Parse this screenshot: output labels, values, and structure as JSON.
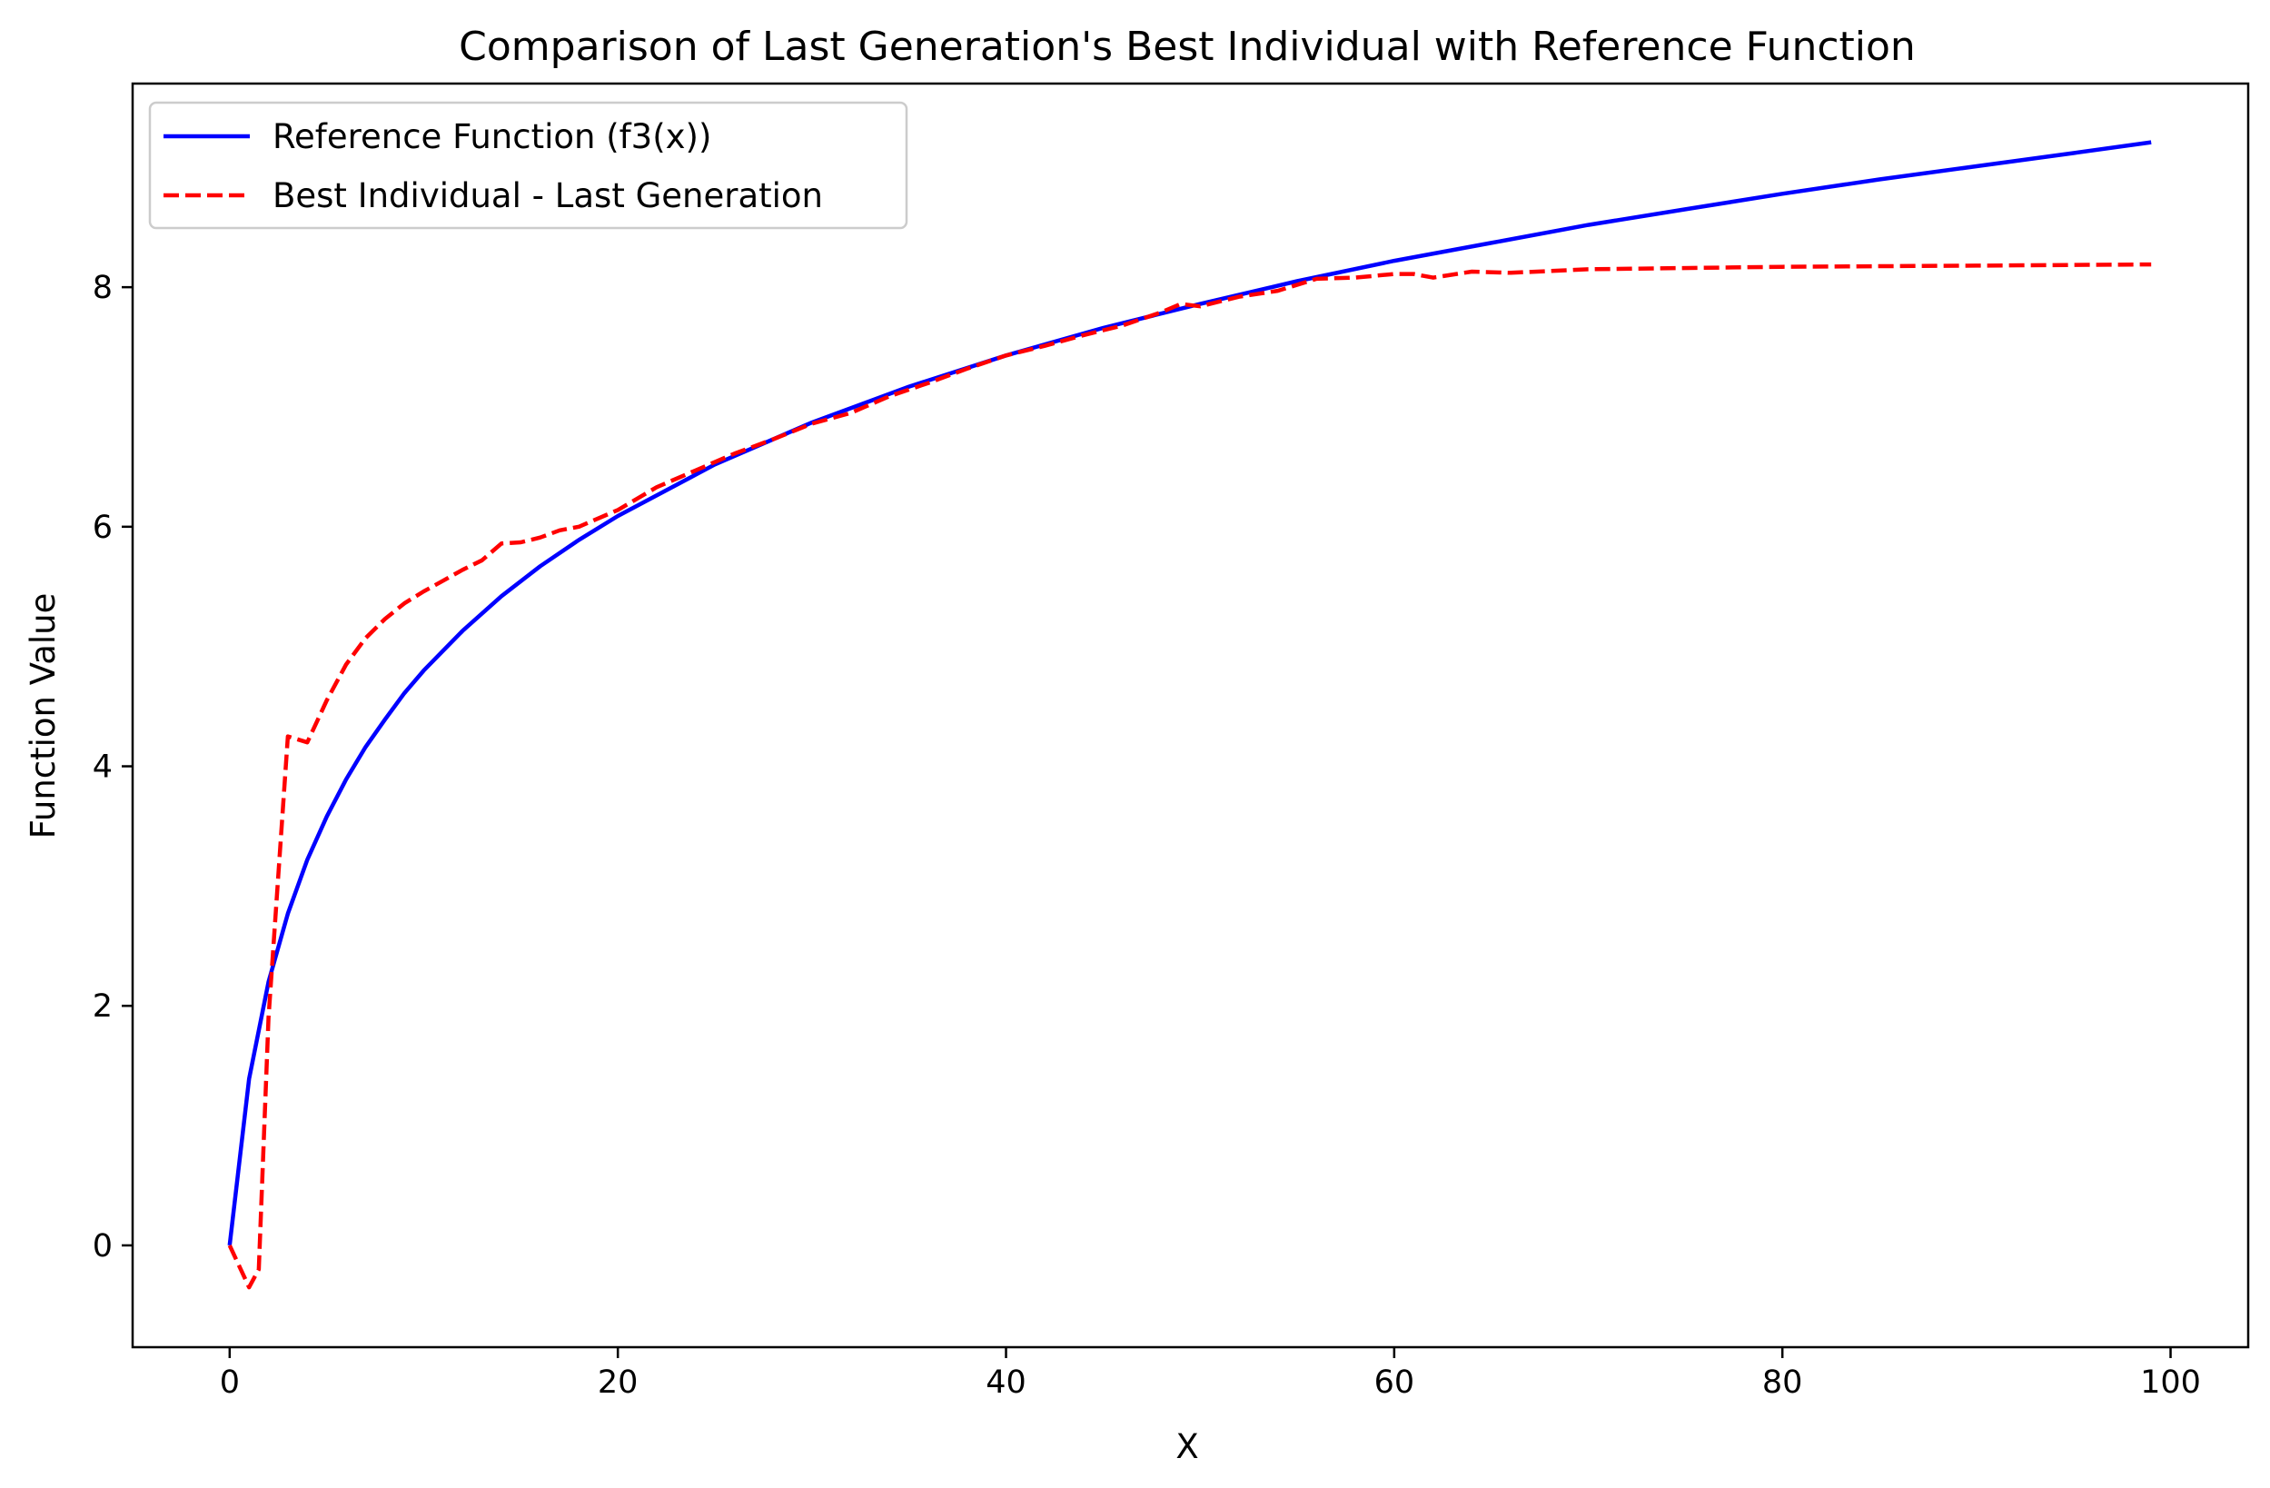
{
  "chart_data": {
    "type": "line",
    "title": "Comparison of Last Generation's Best Individual with Reference Function",
    "xlabel": "X",
    "ylabel": "Function Value",
    "xlim": [
      -5,
      104
    ],
    "ylim": [
      -0.85,
      9.7
    ],
    "xticks": [
      0,
      20,
      40,
      60,
      80,
      100
    ],
    "yticks": [
      0,
      2,
      4,
      6,
      8
    ],
    "grid": false,
    "legend_position": "upper-left",
    "series": [
      {
        "name": "Reference Function (f3(x))",
        "color": "#0000ff",
        "style": "solid",
        "x": [
          0,
          1,
          2,
          3,
          4,
          5,
          6,
          7,
          8,
          9,
          10,
          12,
          14,
          16,
          18,
          20,
          25,
          30,
          35,
          40,
          45,
          50,
          55,
          60,
          65,
          70,
          75,
          80,
          85,
          90,
          95,
          99
        ],
        "y": [
          0,
          1.39,
          2.2,
          2.77,
          3.22,
          3.58,
          3.89,
          4.16,
          4.39,
          4.61,
          4.8,
          5.13,
          5.42,
          5.67,
          5.89,
          6.09,
          6.52,
          6.87,
          7.17,
          7.43,
          7.66,
          7.86,
          8.05,
          8.22,
          8.37,
          8.52,
          8.65,
          8.78,
          8.9,
          9.01,
          9.12,
          9.21
        ]
      },
      {
        "name": "Best Individual - Last Generation",
        "color": "#ff0000",
        "style": "dashed",
        "x": [
          0,
          1,
          1.5,
          2,
          3,
          4,
          5,
          6,
          7,
          8,
          9,
          10,
          11,
          12,
          13,
          14,
          15,
          16,
          17,
          18,
          20,
          22,
          24,
          26,
          28,
          30,
          32,
          34,
          36,
          38,
          40,
          42,
          44,
          46,
          48,
          49,
          50,
          52,
          54,
          56,
          58,
          60,
          61,
          62,
          64,
          66,
          70,
          80,
          90,
          99
        ],
        "y": [
          0,
          -0.35,
          -0.2,
          1.9,
          4.25,
          4.2,
          4.55,
          4.85,
          5.07,
          5.23,
          5.36,
          5.46,
          5.55,
          5.64,
          5.72,
          5.86,
          5.87,
          5.91,
          5.97,
          6.0,
          6.14,
          6.33,
          6.47,
          6.61,
          6.73,
          6.86,
          6.95,
          7.09,
          7.2,
          7.32,
          7.43,
          7.51,
          7.6,
          7.68,
          7.79,
          7.86,
          7.84,
          7.92,
          7.97,
          8.07,
          8.08,
          8.11,
          8.11,
          8.08,
          8.13,
          8.12,
          8.15,
          8.17,
          8.18,
          8.19
        ]
      }
    ]
  }
}
